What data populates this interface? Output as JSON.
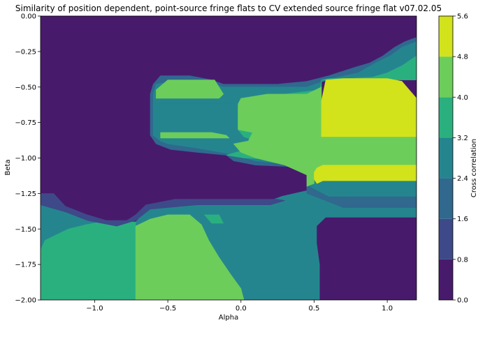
{
  "chart_data": {
    "type": "heatmap",
    "title": "Similarity of position dependent, point-source fringe flats to CV extended source fringe flat v07.02.05",
    "xlabel": "Alpha",
    "ylabel": "Beta",
    "xlim": [
      -1.37,
      1.2
    ],
    "ylim": [
      -2.0,
      0.0
    ],
    "xticks": [
      -1.0,
      -0.5,
      0.0,
      0.5,
      1.0
    ],
    "xtick_labels": [
      "−1.0",
      "−0.5",
      "0.0",
      "0.5",
      "1.0"
    ],
    "yticks": [
      0.0,
      -0.25,
      -0.5,
      -0.75,
      -1.0,
      -1.25,
      -1.5,
      -1.75,
      -2.0
    ],
    "ytick_labels": [
      "0.00",
      "−0.25",
      "−0.50",
      "−0.75",
      "−1.00",
      "−1.25",
      "−1.50",
      "−1.75",
      "−2.00"
    ],
    "colorbar": {
      "label": "Cross correlation",
      "levels": [
        0.0,
        0.8,
        1.6,
        2.4,
        3.2,
        4.0,
        4.8,
        5.6
      ],
      "level_labels": [
        "0.0",
        "0.8",
        "1.6",
        "2.4",
        "3.2",
        "4.0",
        "4.8",
        "5.6"
      ],
      "colors": [
        "#481a6c",
        "#3e4989",
        "#30688e",
        "#25858e",
        "#2ab07f",
        "#6ccd5a",
        "#d2e21b"
      ]
    },
    "regions": [
      {
        "band": 3,
        "points": [
          [
            -1.37,
            -1.3
          ],
          [
            -1.25,
            -1.3
          ],
          [
            -1.2,
            -1.38
          ],
          [
            -1.0,
            -1.42
          ],
          [
            -0.85,
            -1.48
          ],
          [
            -0.78,
            -1.48
          ],
          [
            -0.72,
            -1.45
          ],
          [
            -0.62,
            -1.34
          ],
          [
            -0.4,
            -1.32
          ],
          [
            -0.2,
            -1.32
          ],
          [
            0.0,
            -1.3
          ],
          [
            0.2,
            -1.3
          ],
          [
            0.28,
            -1.27
          ],
          [
            0.45,
            -1.23
          ],
          [
            0.5,
            -1.1
          ],
          [
            0.56,
            -1.03
          ],
          [
            0.65,
            -0.98
          ],
          [
            0.78,
            -0.92
          ],
          [
            0.95,
            -0.85
          ],
          [
            1.2,
            -0.85
          ],
          [
            1.2,
            -2.0
          ],
          [
            -1.37,
            -2.0
          ]
        ]
      },
      {
        "band": 0,
        "points": [
          [
            0.54,
            -2.0
          ],
          [
            0.54,
            -1.75
          ],
          [
            0.52,
            -1.6
          ],
          [
            0.52,
            -1.48
          ],
          [
            0.58,
            -1.42
          ],
          [
            0.7,
            -1.42
          ],
          [
            1.2,
            -1.42
          ],
          [
            1.2,
            -2.0
          ]
        ]
      },
      {
        "band": 4,
        "points": [
          [
            -1.37,
            -2.0
          ],
          [
            -1.37,
            -1.65
          ],
          [
            -1.34,
            -1.58
          ],
          [
            -1.28,
            -1.55
          ],
          [
            -1.18,
            -1.5
          ],
          [
            -1.06,
            -1.47
          ],
          [
            -0.96,
            -1.45
          ],
          [
            -0.72,
            -1.45
          ],
          [
            -0.72,
            -2.0
          ]
        ]
      },
      {
        "band": 5,
        "points": [
          [
            -0.72,
            -2.0
          ],
          [
            -0.72,
            -1.48
          ],
          [
            -0.68,
            -1.46
          ],
          [
            -0.62,
            -1.43
          ],
          [
            -0.5,
            -1.4
          ],
          [
            -0.35,
            -1.4
          ],
          [
            -0.27,
            -1.47
          ],
          [
            -0.22,
            -1.58
          ],
          [
            -0.15,
            -1.7
          ],
          [
            -0.07,
            -1.82
          ],
          [
            0.0,
            -1.92
          ],
          [
            0.02,
            -2.0
          ]
        ]
      },
      {
        "band": 4,
        "points": [
          [
            -0.25,
            -1.4
          ],
          [
            -0.15,
            -1.4
          ],
          [
            -0.12,
            -1.46
          ],
          [
            -0.2,
            -1.46
          ]
        ]
      },
      {
        "band": 1,
        "points": [
          [
            -1.37,
            -1.25
          ],
          [
            -1.28,
            -1.25
          ],
          [
            -1.2,
            -1.34
          ],
          [
            -1.05,
            -1.4
          ],
          [
            -0.92,
            -1.44
          ],
          [
            -0.78,
            -1.44
          ],
          [
            -0.72,
            -1.4
          ],
          [
            -0.65,
            -1.33
          ],
          [
            -0.45,
            -1.29
          ],
          [
            0.25,
            -1.29
          ],
          [
            0.3,
            -1.3
          ],
          [
            0.2,
            -1.33
          ],
          [
            -0.3,
            -1.33
          ],
          [
            -0.62,
            -1.36
          ],
          [
            -0.72,
            -1.44
          ],
          [
            -0.85,
            -1.48
          ],
          [
            -1.05,
            -1.44
          ],
          [
            -1.2,
            -1.38
          ],
          [
            -1.37,
            -1.33
          ]
        ]
      },
      {
        "band": 2,
        "points": [
          [
            1.2,
            -0.15
          ],
          [
            1.12,
            -0.18
          ],
          [
            1.05,
            -0.22
          ],
          [
            0.97,
            -0.28
          ],
          [
            0.88,
            -0.33
          ],
          [
            0.78,
            -0.36
          ],
          [
            0.6,
            -0.42
          ],
          [
            0.45,
            -0.46
          ],
          [
            0.25,
            -0.48
          ],
          [
            -0.12,
            -0.48
          ],
          [
            -0.2,
            -0.45
          ],
          [
            -0.35,
            -0.42
          ],
          [
            -0.55,
            -0.42
          ],
          [
            -0.6,
            -0.48
          ],
          [
            -0.62,
            -0.55
          ],
          [
            -0.62,
            -0.84
          ],
          [
            -0.58,
            -0.9
          ],
          [
            -0.48,
            -0.94
          ],
          [
            -0.3,
            -0.96
          ],
          [
            -0.1,
            -0.98
          ],
          [
            -0.05,
            -1.02
          ],
          [
            0.1,
            -1.05
          ],
          [
            0.32,
            -1.06
          ],
          [
            0.55,
            -1.08
          ],
          [
            0.55,
            -1.1
          ],
          [
            0.45,
            -1.2
          ],
          [
            0.45,
            -1.25
          ],
          [
            0.58,
            -1.3
          ],
          [
            0.7,
            -1.35
          ],
          [
            1.2,
            -1.35
          ],
          [
            1.2,
            -0.85
          ],
          [
            0.55,
            -0.85
          ],
          [
            0.55,
            -0.45
          ],
          [
            1.2,
            -0.45
          ]
        ]
      },
      {
        "band": 3,
        "points": [
          [
            1.2,
            -0.18
          ],
          [
            1.1,
            -0.22
          ],
          [
            1.02,
            -0.28
          ],
          [
            0.92,
            -0.33
          ],
          [
            0.8,
            -0.4
          ],
          [
            0.62,
            -0.44
          ],
          [
            0.45,
            -0.5
          ],
          [
            -0.12,
            -0.5
          ],
          [
            -0.22,
            -0.47
          ],
          [
            -0.4,
            -0.45
          ],
          [
            -0.58,
            -0.48
          ],
          [
            -0.6,
            -0.55
          ],
          [
            -0.6,
            -0.84
          ],
          [
            -0.55,
            -0.88
          ],
          [
            -0.5,
            -0.9
          ],
          [
            -0.3,
            -0.93
          ],
          [
            -0.08,
            -0.97
          ],
          [
            0.1,
            -1.02
          ],
          [
            0.28,
            -1.04
          ],
          [
            0.45,
            -1.05
          ],
          [
            0.5,
            -1.1
          ],
          [
            0.47,
            -1.2
          ],
          [
            0.6,
            -1.27
          ],
          [
            1.2,
            -1.27
          ],
          [
            1.2,
            -0.85
          ],
          [
            0.55,
            -0.85
          ],
          [
            0.55,
            -0.45
          ],
          [
            1.2,
            -0.45
          ]
        ]
      },
      {
        "band": 4,
        "points": [
          [
            1.2,
            -0.28
          ],
          [
            1.1,
            -0.35
          ],
          [
            1.0,
            -0.4
          ],
          [
            0.9,
            -0.43
          ],
          [
            0.75,
            -0.44
          ],
          [
            0.6,
            -0.44
          ],
          [
            0.55,
            -0.45
          ],
          [
            0.54,
            -0.52
          ],
          [
            0.3,
            -0.55
          ],
          [
            0.1,
            -0.6
          ],
          [
            0.0,
            -0.62
          ],
          [
            -0.02,
            -0.65
          ],
          [
            -0.02,
            -0.8
          ],
          [
            0.02,
            -0.85
          ],
          [
            0.1,
            -0.88
          ],
          [
            0.1,
            -0.92
          ],
          [
            0.0,
            -0.95
          ],
          [
            -0.1,
            -0.98
          ],
          [
            0.02,
            -1.0
          ],
          [
            0.25,
            -1.01
          ],
          [
            0.45,
            -1.03
          ],
          [
            0.6,
            -1.04
          ],
          [
            1.2,
            -1.04
          ],
          [
            1.2,
            -0.85
          ],
          [
            0.55,
            -0.85
          ],
          [
            0.55,
            -0.45
          ],
          [
            1.2,
            -0.45
          ]
        ]
      },
      {
        "band": 3,
        "points": [
          [
            -0.58,
            -0.62
          ],
          [
            -0.05,
            -0.62
          ],
          [
            -0.05,
            -0.84
          ],
          [
            -0.6,
            -0.84
          ],
          [
            -0.6,
            -0.62
          ]
        ]
      },
      {
        "band": 5,
        "points": [
          [
            -0.58,
            -0.58
          ],
          [
            -0.58,
            -0.52
          ],
          [
            -0.5,
            -0.45
          ],
          [
            -0.18,
            -0.45
          ],
          [
            -0.12,
            -0.55
          ],
          [
            -0.15,
            -0.58
          ]
        ]
      },
      {
        "band": 5,
        "points": [
          [
            -0.02,
            -0.62
          ],
          [
            0.0,
            -0.58
          ],
          [
            0.18,
            -0.55
          ],
          [
            0.45,
            -0.55
          ],
          [
            0.55,
            -0.5
          ],
          [
            0.55,
            -0.85
          ],
          [
            1.2,
            -0.85
          ],
          [
            1.2,
            -1.05
          ],
          [
            0.58,
            -1.05
          ],
          [
            0.55,
            -1.08
          ],
          [
            0.5,
            -1.12
          ],
          [
            0.5,
            -1.18
          ],
          [
            0.45,
            -1.2
          ],
          [
            0.45,
            -1.12
          ],
          [
            0.3,
            -1.05
          ],
          [
            0.1,
            -1.0
          ],
          [
            0.0,
            -0.96
          ],
          [
            -0.05,
            -0.9
          ],
          [
            0.05,
            -0.88
          ],
          [
            0.08,
            -0.82
          ],
          [
            -0.02,
            -0.8
          ]
        ]
      },
      {
        "band": 5,
        "points": [
          [
            -0.55,
            -0.86
          ],
          [
            -0.55,
            -0.82
          ],
          [
            -0.2,
            -0.82
          ],
          [
            -0.1,
            -0.84
          ],
          [
            -0.08,
            -0.86
          ]
        ]
      },
      {
        "band": 6,
        "points": [
          [
            0.55,
            -0.85
          ],
          [
            0.55,
            -0.6
          ],
          [
            0.58,
            -0.45
          ],
          [
            0.7,
            -0.44
          ],
          [
            1.0,
            -0.44
          ],
          [
            1.1,
            -0.46
          ],
          [
            1.2,
            -0.58
          ],
          [
            1.2,
            -0.85
          ]
        ]
      },
      {
        "band": 6,
        "points": [
          [
            0.5,
            -1.1
          ],
          [
            0.52,
            -1.07
          ],
          [
            0.56,
            -1.05
          ],
          [
            1.2,
            -1.05
          ],
          [
            1.2,
            -1.16
          ],
          [
            0.56,
            -1.16
          ],
          [
            0.52,
            -1.18
          ],
          [
            0.5,
            -1.15
          ]
        ]
      }
    ]
  }
}
